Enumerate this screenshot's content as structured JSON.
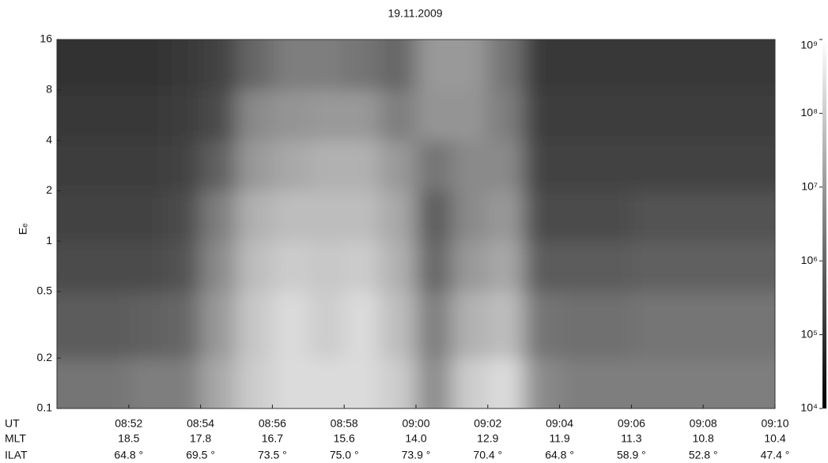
{
  "chart_data": {
    "type": "spectrogram",
    "title": "19.11.2009",
    "y_label": "Eₑ",
    "x": [
      "08:50",
      "08:51",
      "08:52",
      "08:53",
      "08:54",
      "08:55",
      "08:56",
      "08:57",
      "08:58",
      "08:59",
      "09:00",
      "09:01",
      "09:02",
      "09:03",
      "09:04",
      "09:05",
      "09:06",
      "09:07",
      "09:08",
      "09:09"
    ],
    "ybins": [
      0.1,
      0.2,
      0.5,
      1,
      2,
      4,
      8,
      16
    ],
    "values": [
      [
        2000000.0,
        2000000.0,
        3000000.0,
        3000000.0,
        20000000.0,
        100000000.0,
        200000000.0,
        200000000.0,
        200000000.0,
        100000000.0,
        5000000.0,
        100000000.0,
        200000000.0,
        5000000.0,
        3000000.0,
        3000000.0,
        3000000.0,
        3000000.0,
        3000000.0,
        3000000.0
      ],
      [
        600000.0,
        600000.0,
        800000.0,
        1000000.0,
        10000000.0,
        80000000.0,
        200000000.0,
        100000000.0,
        200000000.0,
        50000000.0,
        3000000.0,
        30000000.0,
        50000000.0,
        2000000.0,
        1500000.0,
        1500000.0,
        2000000.0,
        2000000.0,
        2000000.0,
        2000000.0
      ],
      [
        300000.0,
        300000.0,
        300000.0,
        400000.0,
        5000000.0,
        50000000.0,
        100000000.0,
        80000000.0,
        100000000.0,
        30000000.0,
        1000000.0,
        10000000.0,
        20000000.0,
        600000.0,
        600000.0,
        600000.0,
        800000.0,
        800000.0,
        800000.0,
        800000.0
      ],
      [
        200000.0,
        200000.0,
        200000.0,
        300000.0,
        3000000.0,
        30000000.0,
        50000000.0,
        50000000.0,
        50000000.0,
        20000000.0,
        600000.0,
        5000000.0,
        10000000.0,
        300000.0,
        300000.0,
        300000.0,
        400000.0,
        400000.0,
        400000.0,
        400000.0
      ],
      [
        150000.0,
        150000.0,
        150000.0,
        200000.0,
        800000.0,
        10000000.0,
        20000000.0,
        30000000.0,
        30000000.0,
        10000000.0,
        2000000.0,
        5000000.0,
        5000000.0,
        200000.0,
        200000.0,
        200000.0,
        200000.0,
        200000.0,
        200000.0,
        200000.0
      ],
      [
        120000.0,
        120000.0,
        120000.0,
        150000.0,
        300000.0,
        5000000.0,
        8000000.0,
        10000000.0,
        10000000.0,
        3000000.0,
        8000000.0,
        8000000.0,
        3000000.0,
        150000.0,
        150000.0,
        150000.0,
        150000.0,
        150000.0,
        150000.0,
        150000.0
      ],
      [
        100000.0,
        100000.0,
        100000.0,
        120000.0,
        200000.0,
        1000000.0,
        3000000.0,
        3000000.0,
        2000000.0,
        1000000.0,
        10000000.0,
        10000000.0,
        2000000.0,
        120000.0,
        120000.0,
        120000.0,
        120000.0,
        120000.0,
        120000.0,
        120000.0
      ]
    ],
    "xlim": [
      "08:50",
      "09:10"
    ],
    "ylim": [
      0.1,
      16
    ],
    "ylog": true,
    "yticks": [
      0.1,
      0.2,
      0.5,
      1,
      2,
      4,
      8,
      16
    ],
    "xticks": [
      "08:52",
      "08:54",
      "08:56",
      "08:58",
      "09:00",
      "09:02",
      "09:04",
      "09:06",
      "09:08",
      "09:10"
    ],
    "x_row_name": "UT",
    "rows": [
      {
        "name": "MLT",
        "values": [
          18.5,
          17.8,
          16.7,
          15.6,
          14.0,
          12.9,
          11.9,
          11.3,
          10.8,
          10.4
        ],
        "value_labels": [
          "18.5",
          "17.8",
          "16.7",
          "15.6",
          "14.0",
          "12.9",
          "11.9",
          "11.3",
          "10.8",
          "10.4"
        ]
      },
      {
        "name": "ILAT",
        "values": [
          64.8,
          69.5,
          73.5,
          75.0,
          73.9,
          70.4,
          64.8,
          58.9,
          52.8,
          47.4
        ],
        "value_labels": [
          "64.8 °",
          "69.5 °",
          "73.5 °",
          "75.0 °",
          "73.9 °",
          "70.4 °",
          "64.8 °",
          "58.9 °",
          "52.8 °",
          "47.4 °"
        ]
      }
    ],
    "colorbar": {
      "zlim": [
        10000.0,
        1000000000.0
      ],
      "log": true,
      "colormap": "gray",
      "ticks": [
        {
          "value": 10000.0,
          "label": "10⁴"
        },
        {
          "value": 100000.0,
          "label": "10⁵"
        },
        {
          "value": 1000000.0,
          "label": "10⁶"
        },
        {
          "value": 10000000.0,
          "label": "10⁷"
        },
        {
          "value": 100000000.0,
          "label": "10⁸"
        },
        {
          "value": 1000000000.0,
          "label": "10⁹"
        }
      ]
    }
  }
}
